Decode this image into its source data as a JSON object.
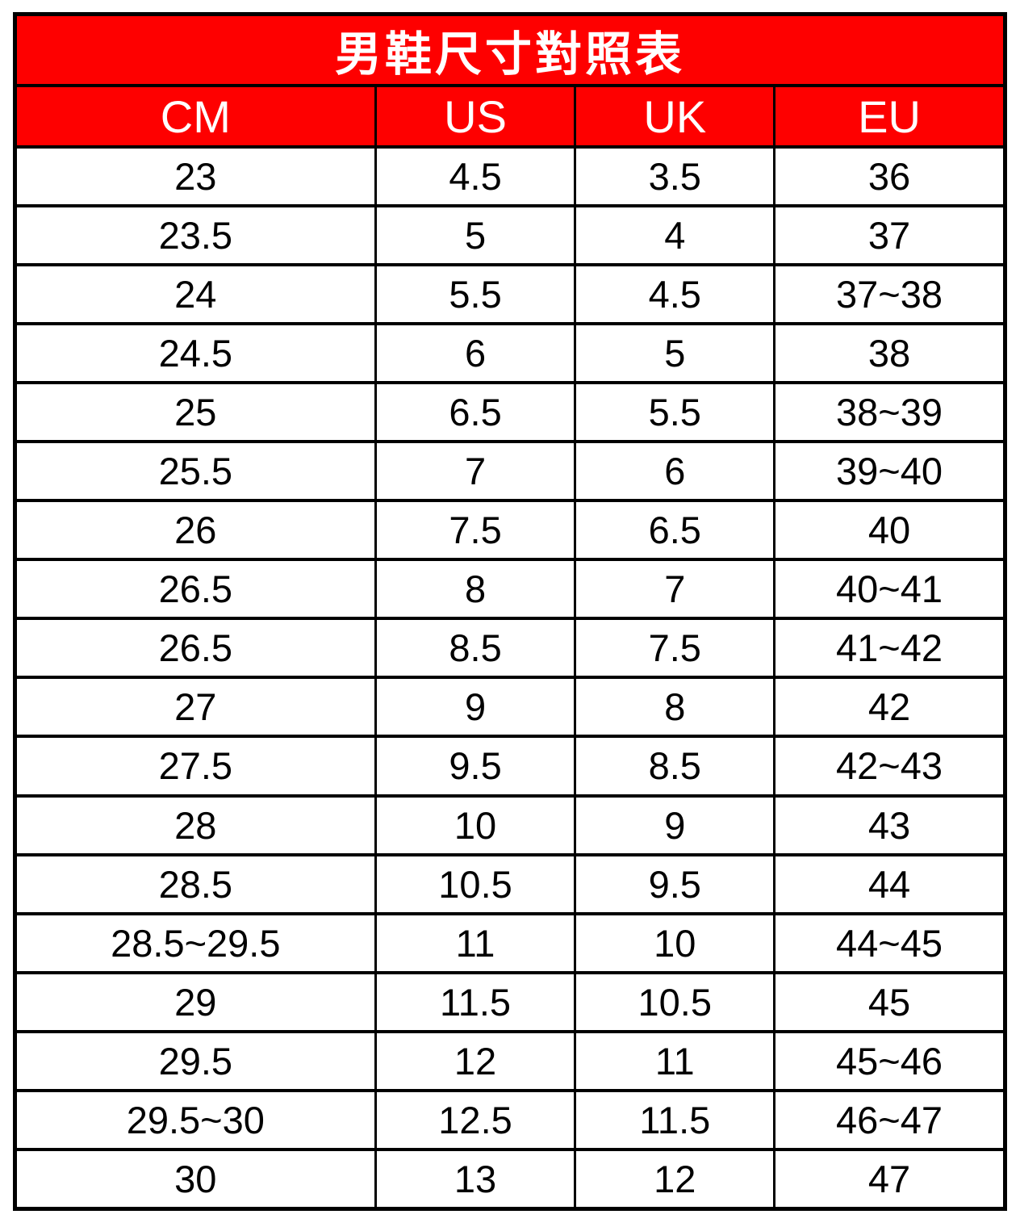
{
  "chart_data": {
    "type": "table",
    "title": "男鞋尺寸對照表",
    "columns": [
      "CM",
      "US",
      "UK",
      "EU"
    ],
    "rows": [
      [
        "23",
        "4.5",
        "3.5",
        "36"
      ],
      [
        "23.5",
        "5",
        "4",
        "37"
      ],
      [
        "24",
        "5.5",
        "4.5",
        "37~38"
      ],
      [
        "24.5",
        "6",
        "5",
        "38"
      ],
      [
        "25",
        "6.5",
        "5.5",
        "38~39"
      ],
      [
        "25.5",
        "7",
        "6",
        "39~40"
      ],
      [
        "26",
        "7.5",
        "6.5",
        "40"
      ],
      [
        "26.5",
        "8",
        "7",
        "40~41"
      ],
      [
        "26.5",
        "8.5",
        "7.5",
        "41~42"
      ],
      [
        "27",
        "9",
        "8",
        "42"
      ],
      [
        "27.5",
        "9.5",
        "8.5",
        "42~43"
      ],
      [
        "28",
        "10",
        "9",
        "43"
      ],
      [
        "28.5",
        "10.5",
        "9.5",
        "44"
      ],
      [
        "28.5~29.5",
        "11",
        "10",
        "44~45"
      ],
      [
        "29",
        "11.5",
        "10.5",
        "45"
      ],
      [
        "29.5",
        "12",
        "11",
        "45~46"
      ],
      [
        "29.5~30",
        "12.5",
        "11.5",
        "46~47"
      ],
      [
        "30",
        "13",
        "12",
        "47"
      ]
    ],
    "layout": {
      "legend": "none",
      "grid": "on",
      "column_width_pct": [
        36.4,
        20.2,
        20.1,
        23.3
      ],
      "colors": {
        "header_bg": "#fe0000",
        "header_text": "#ffffff",
        "body_bg": "#ffffff",
        "body_text": "#000000",
        "border": "#000000"
      }
    }
  }
}
